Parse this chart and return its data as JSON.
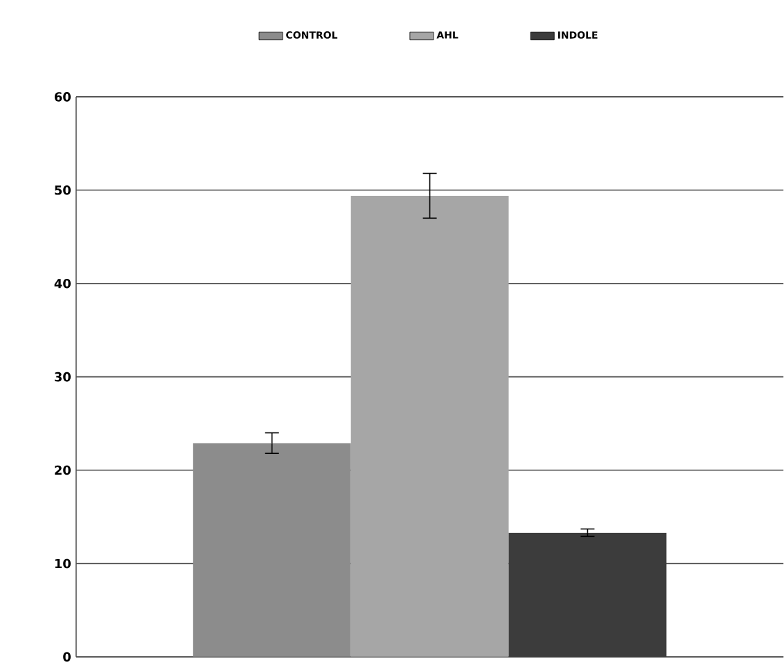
{
  "chart_data": {
    "type": "bar",
    "categories": [
      null
    ],
    "series": [
      {
        "name": "CONTROL",
        "color": "#8c8c8c",
        "values": [
          22.9
        ],
        "errors": [
          1.1
        ]
      },
      {
        "name": "AHL",
        "color": "#a6a6a6",
        "values": [
          49.4
        ],
        "errors": [
          2.4
        ]
      },
      {
        "name": "INDOLE",
        "color": "#3c3c3c",
        "values": [
          13.3
        ],
        "errors": [
          0.4
        ]
      }
    ],
    "ylim": [
      0,
      60
    ],
    "yticks": [
      0,
      10,
      20,
      30,
      40,
      50,
      60
    ],
    "grid": "y",
    "legend": "top"
  }
}
